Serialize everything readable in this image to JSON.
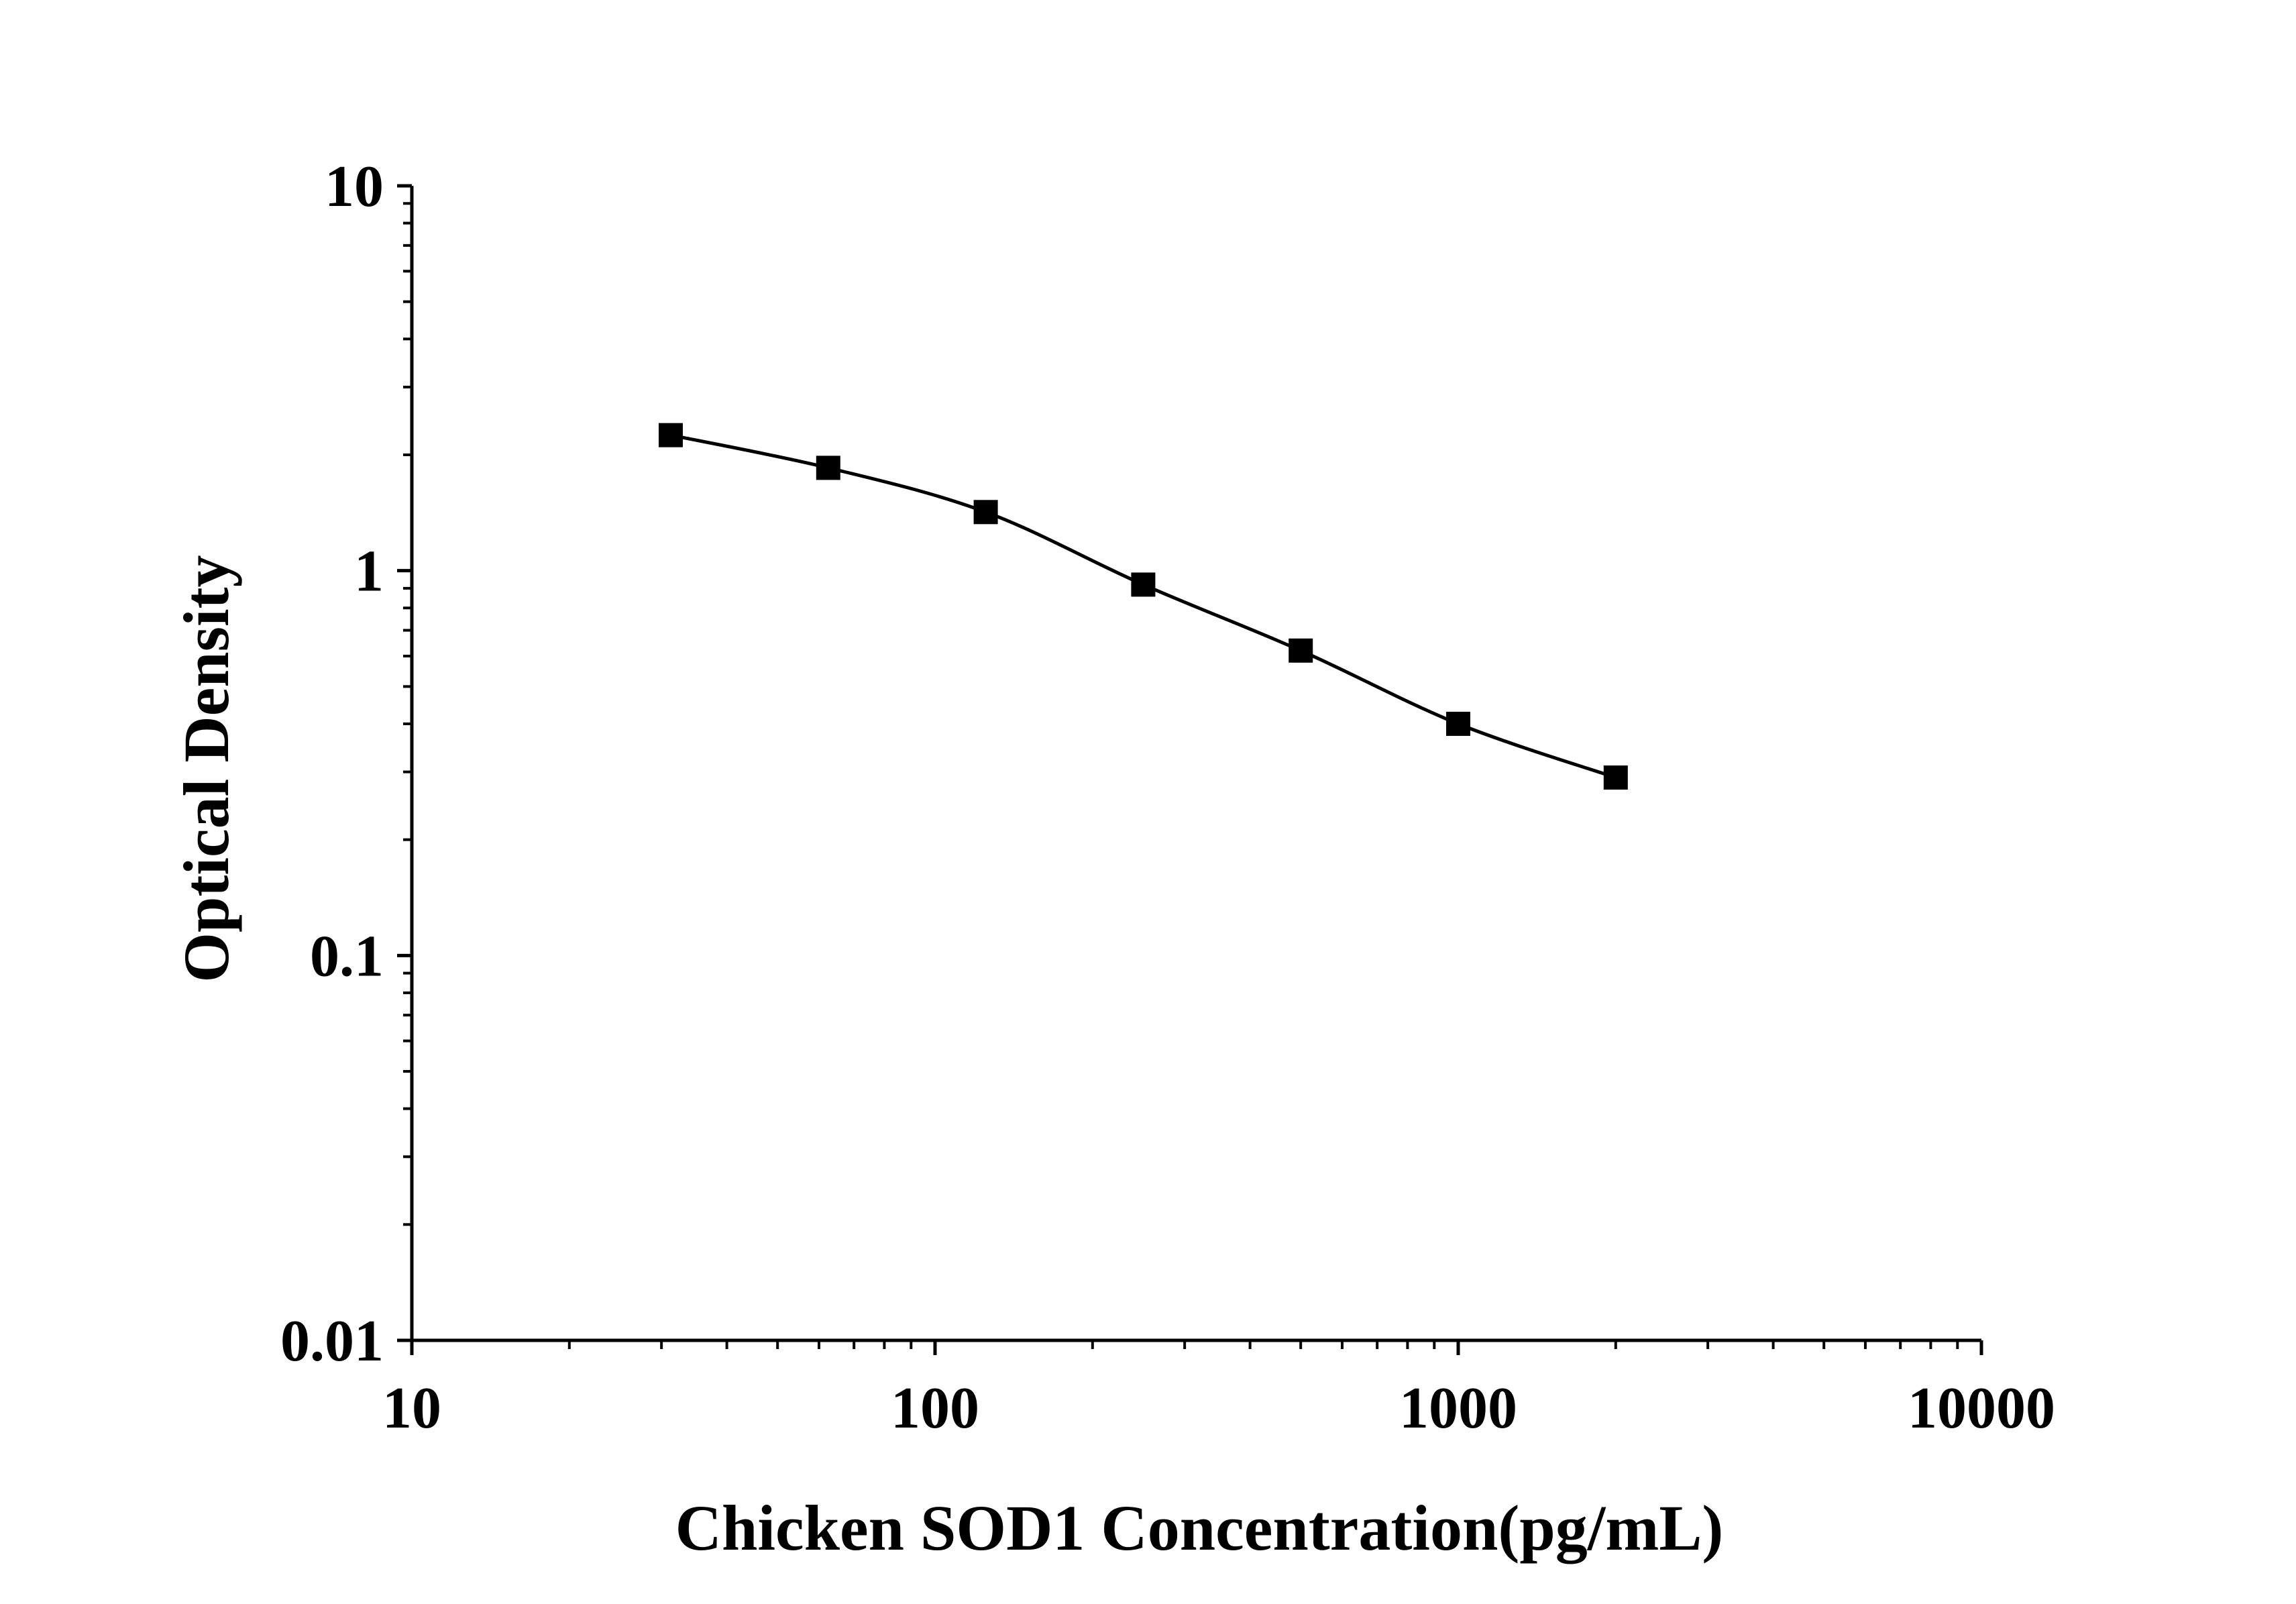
{
  "chart_data": {
    "type": "line",
    "title": "",
    "xlabel": "Chicken SOD1 Concentration(pg/mL)",
    "ylabel": "Optical Density",
    "x_scale": "log",
    "y_scale": "log",
    "xlim": [
      10,
      10000
    ],
    "ylim": [
      0.01,
      10
    ],
    "x_ticks": [
      "10",
      "100",
      "1000",
      "10000"
    ],
    "y_ticks": [
      "0.01",
      "0.1",
      "1",
      "10"
    ],
    "grid": false,
    "legend": "none",
    "marker": "square",
    "line_color": "#000000",
    "marker_color": "#000000",
    "series": [
      {
        "x": [
          31.25,
          62.5,
          125,
          250,
          500,
          1000,
          2000
        ],
        "y": [
          2.25,
          1.85,
          1.42,
          0.92,
          0.62,
          0.4,
          0.29
        ]
      }
    ]
  }
}
